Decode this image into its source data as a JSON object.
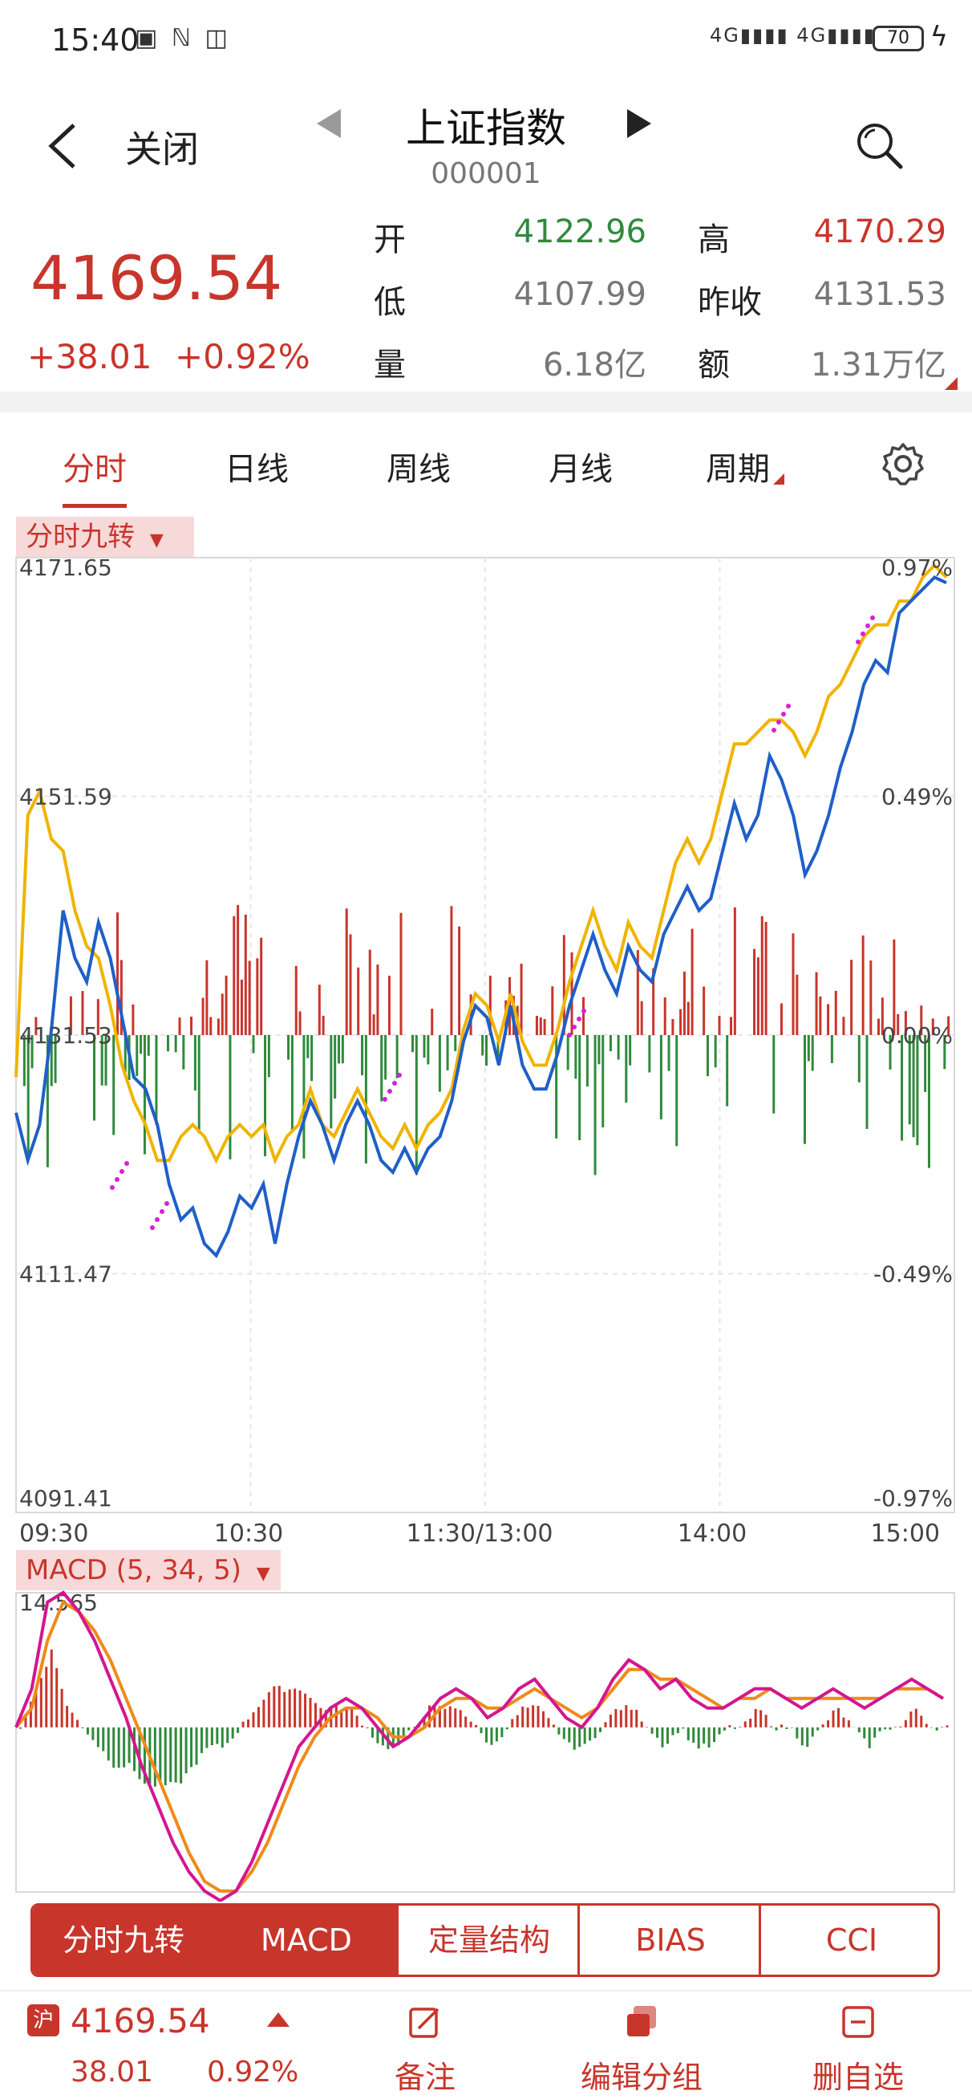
{
  "status_bar": {
    "time": "15:40",
    "notif_icons": "▣ ℕ ◫",
    "signal_text": "4G▮▮▮▮ 4G▮▮▮▮",
    "battery": "70",
    "charging_glyph": "ϟ"
  },
  "header": {
    "back_icon": "chevron-left-icon",
    "close_label": "关闭",
    "title": "上证指数",
    "code": "000001",
    "search_icon": "search-icon"
  },
  "quote": {
    "price": "4169.54",
    "change": "+38.01",
    "change_pct": "+0.92%",
    "open_label": "开",
    "open": "4122.96",
    "high_label": "高",
    "high": "4170.29",
    "low_label": "低",
    "low": "4107.99",
    "prev_close_label": "昨收",
    "prev_close": "4131.53",
    "volume_label": "量",
    "volume": "6.18亿",
    "amount_label": "额",
    "amount": "1.31万亿"
  },
  "tabs": [
    {
      "label": "分时",
      "active": true
    },
    {
      "label": "日线"
    },
    {
      "label": "周线"
    },
    {
      "label": "月线"
    },
    {
      "label": "周期"
    }
  ],
  "colors": {
    "red": "#c8352b",
    "green": "#2f8a3c",
    "price_line": "#1f5fc8",
    "avg_line": "#f0b400",
    "dif_line": "#d4168f",
    "dea_line": "#f08a1a",
    "marker": "#d422d4",
    "nine": "#5ec05e"
  },
  "chart_data": [
    {
      "type": "line",
      "indicator_label": "分时九转",
      "y_left_ticks": [
        "4171.65",
        "4151.59",
        "4131.53",
        "4111.47",
        "4091.41"
      ],
      "y_right_ticks": [
        "0.97%",
        "0.49%",
        "0.00%",
        "-0.49%",
        "-0.97%"
      ],
      "x_ticks": [
        "09:30",
        "10:30",
        "11:30/13:00",
        "14:00",
        "15:00"
      ],
      "ylim": [
        4091.41,
        4171.65
      ],
      "grid": true,
      "series_price": [
        4125,
        4121,
        4124,
        4132,
        4142,
        4138,
        4136,
        4141,
        4138,
        4133,
        4128,
        4127,
        4124,
        4119,
        4116,
        4117,
        4114,
        4113,
        4115,
        4118,
        4117,
        4119,
        4114,
        4119,
        4123,
        4126,
        4124,
        4121,
        4124,
        4126,
        4124,
        4121,
        4120,
        4122,
        4120,
        4122,
        4123,
        4126,
        4131,
        4134,
        4133,
        4129,
        4134,
        4129,
        4127,
        4127,
        4130,
        4134,
        4137,
        4140,
        4137,
        4135,
        4139,
        4137,
        4136,
        4140,
        4142,
        4144,
        4142,
        4143,
        4147,
        4151,
        4148,
        4150,
        4155,
        4153,
        4150,
        4145,
        4147,
        4150,
        4154,
        4157,
        4161,
        4163,
        4162,
        4167,
        4168,
        4169,
        4170,
        4169.54
      ],
      "series_avg": [
        4128,
        4150,
        4152,
        4148,
        4147,
        4142,
        4139,
        4138,
        4134,
        4129,
        4126,
        4124,
        4121,
        4121,
        4123,
        4124,
        4123,
        4121,
        4123,
        4124,
        4123,
        4124,
        4121,
        4123,
        4124,
        4127,
        4124,
        4123,
        4125,
        4127,
        4125,
        4123,
        4122,
        4124,
        4122,
        4124,
        4125,
        4127,
        4132,
        4135,
        4134,
        4131,
        4135,
        4131,
        4129,
        4129,
        4132,
        4136,
        4139,
        4142,
        4139,
        4137,
        4141,
        4139,
        4138,
        4142,
        4146,
        4148,
        4146,
        4148,
        4152,
        4156,
        4156,
        4157,
        4158,
        4158,
        4157,
        4155,
        4157,
        4160,
        4161,
        4163,
        4165,
        4166,
        4166,
        4168,
        4168,
        4170,
        4171,
        4170
      ]
    },
    {
      "type": "line",
      "indicator_label": "MACD (5, 34, 5)",
      "y_top_label": "14.565",
      "series_dif": [
        0,
        4,
        13,
        14,
        12,
        9,
        5,
        1,
        -4,
        -8,
        -12,
        -15,
        -17,
        -18,
        -17,
        -14,
        -10,
        -6,
        -2,
        0,
        2,
        3,
        2,
        0,
        -2,
        -1,
        1,
        3,
        4,
        3,
        1,
        2,
        4,
        5,
        3,
        1,
        0,
        2,
        5,
        7,
        6,
        4,
        5,
        3,
        2,
        2,
        3,
        4,
        4,
        3,
        2,
        3,
        4,
        3,
        2,
        3,
        4,
        5,
        4,
        3
      ],
      "series_dea": [
        0,
        2,
        9,
        13,
        12,
        10,
        7,
        3,
        -1,
        -5,
        -9,
        -13,
        -16,
        -17,
        -17,
        -15,
        -12,
        -8,
        -4,
        -1,
        1,
        2,
        2,
        1,
        -1,
        -1,
        0,
        2,
        3,
        3,
        2,
        2,
        3,
        4,
        3,
        2,
        1,
        2,
        4,
        6,
        6,
        5,
        5,
        4,
        3,
        2,
        3,
        3,
        4,
        3,
        3,
        3,
        3,
        3,
        3,
        3,
        4,
        4,
        4,
        3
      ]
    }
  ],
  "indicator_tabs": [
    "分时九转",
    "MACD",
    "定量结构",
    "BIAS",
    "CCI"
  ],
  "footer": {
    "exchange_badge": "沪",
    "price": "4169.54",
    "change": "38.01",
    "change_pct": "0.92%",
    "buttons": [
      {
        "label": "备注",
        "icon": "note-icon"
      },
      {
        "label": "编辑分组",
        "icon": "group-icon"
      },
      {
        "label": "删自选",
        "icon": "remove-icon"
      }
    ]
  }
}
